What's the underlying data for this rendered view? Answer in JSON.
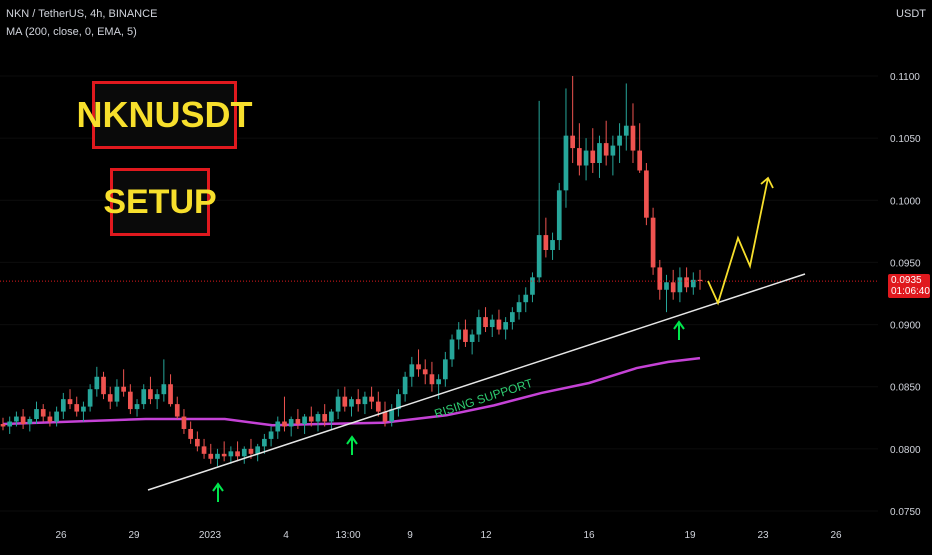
{
  "header": {
    "symbol_line": "NKN / TetherUS, 4h, BINANCE",
    "indicator_line": "MA (200, close, 0, EMA, 5)"
  },
  "annotations": {
    "title_box": "NKNUSDT",
    "setup_box": "SETUP",
    "support_label": "RISING SUPPORT"
  },
  "price_axis": {
    "currency": "USDT",
    "current_price": "0.0935",
    "countdown": "01:06:40"
  },
  "colors": {
    "up": "#26a69a",
    "down": "#ef5350",
    "ma": "#c542d6",
    "arrow": "#00e64d",
    "projection": "#f7df2c",
    "box_border": "#e0191e"
  },
  "chart_data": {
    "type": "candlestick",
    "timeframe": "4h",
    "ylim": [
      0.075,
      0.112
    ],
    "y_ticks": [
      "0.0750",
      "0.0800",
      "0.0850",
      "0.0900",
      "0.0950",
      "0.1000",
      "0.1050",
      "0.1100"
    ],
    "x_ticks": [
      "26",
      "29",
      "2023",
      "4",
      "13:00",
      "9",
      "12",
      "16",
      "19",
      "23",
      "26"
    ],
    "current_price": 0.0935,
    "candles_ohlc": [
      [
        0.082,
        0.0825,
        0.0815,
        0.0818
      ],
      [
        0.0818,
        0.0826,
        0.0812,
        0.0822
      ],
      [
        0.0822,
        0.083,
        0.0818,
        0.0826
      ],
      [
        0.0826,
        0.0832,
        0.0816,
        0.082
      ],
      [
        0.082,
        0.0826,
        0.0814,
        0.0824
      ],
      [
        0.0824,
        0.0838,
        0.082,
        0.0832
      ],
      [
        0.0832,
        0.0836,
        0.0822,
        0.0826
      ],
      [
        0.0826,
        0.083,
        0.0818,
        0.0822
      ],
      [
        0.0822,
        0.0834,
        0.0818,
        0.083
      ],
      [
        0.083,
        0.0845,
        0.0824,
        0.084
      ],
      [
        0.084,
        0.0848,
        0.0832,
        0.0836
      ],
      [
        0.0836,
        0.0842,
        0.0826,
        0.083
      ],
      [
        0.083,
        0.0838,
        0.0822,
        0.0834
      ],
      [
        0.0834,
        0.0852,
        0.083,
        0.0848
      ],
      [
        0.0848,
        0.0866,
        0.0842,
        0.0858
      ],
      [
        0.0858,
        0.0862,
        0.084,
        0.0844
      ],
      [
        0.0844,
        0.085,
        0.0832,
        0.0838
      ],
      [
        0.0838,
        0.0856,
        0.0834,
        0.085
      ],
      [
        0.085,
        0.0864,
        0.0842,
        0.0846
      ],
      [
        0.0846,
        0.0852,
        0.0828,
        0.0832
      ],
      [
        0.0832,
        0.084,
        0.0826,
        0.0836
      ],
      [
        0.0836,
        0.0852,
        0.0832,
        0.0848
      ],
      [
        0.0848,
        0.0858,
        0.0836,
        0.084
      ],
      [
        0.084,
        0.0848,
        0.0832,
        0.0844
      ],
      [
        0.0844,
        0.0872,
        0.0838,
        0.0852
      ],
      [
        0.0852,
        0.086,
        0.0834,
        0.0836
      ],
      [
        0.0836,
        0.0842,
        0.0824,
        0.0826
      ],
      [
        0.0826,
        0.0832,
        0.0812,
        0.0816
      ],
      [
        0.0816,
        0.0822,
        0.0804,
        0.0808
      ],
      [
        0.0808,
        0.0814,
        0.0798,
        0.0802
      ],
      [
        0.0802,
        0.0808,
        0.0792,
        0.0796
      ],
      [
        0.0796,
        0.0804,
        0.0788,
        0.0792
      ],
      [
        0.0792,
        0.08,
        0.0786,
        0.0796
      ],
      [
        0.0796,
        0.0806,
        0.079,
        0.0794
      ],
      [
        0.0794,
        0.0802,
        0.0788,
        0.0798
      ],
      [
        0.0798,
        0.0806,
        0.079,
        0.0794
      ],
      [
        0.0794,
        0.0802,
        0.0788,
        0.08
      ],
      [
        0.08,
        0.0808,
        0.0792,
        0.0796
      ],
      [
        0.0796,
        0.0804,
        0.079,
        0.0802
      ],
      [
        0.0802,
        0.0812,
        0.0796,
        0.0808
      ],
      [
        0.0808,
        0.0818,
        0.0802,
        0.0814
      ],
      [
        0.0814,
        0.0826,
        0.0808,
        0.0822
      ],
      [
        0.0822,
        0.0842,
        0.0814,
        0.0818
      ],
      [
        0.0818,
        0.0826,
        0.081,
        0.0824
      ],
      [
        0.0824,
        0.0832,
        0.0816,
        0.082
      ],
      [
        0.082,
        0.0828,
        0.0812,
        0.0826
      ],
      [
        0.0826,
        0.0834,
        0.0818,
        0.0822
      ],
      [
        0.0822,
        0.083,
        0.0814,
        0.0828
      ],
      [
        0.0828,
        0.0836,
        0.0818,
        0.0822
      ],
      [
        0.0822,
        0.0832,
        0.0816,
        0.083
      ],
      [
        0.083,
        0.0848,
        0.0824,
        0.0842
      ],
      [
        0.0842,
        0.085,
        0.083,
        0.0834
      ],
      [
        0.0834,
        0.0842,
        0.0826,
        0.084
      ],
      [
        0.084,
        0.0848,
        0.083,
        0.0836
      ],
      [
        0.0836,
        0.0846,
        0.0828,
        0.0842
      ],
      [
        0.0842,
        0.085,
        0.0832,
        0.0838
      ],
      [
        0.0838,
        0.0846,
        0.0826,
        0.083
      ],
      [
        0.083,
        0.0838,
        0.0818,
        0.0822
      ],
      [
        0.0822,
        0.0836,
        0.0818,
        0.0832
      ],
      [
        0.0832,
        0.0848,
        0.0826,
        0.0844
      ],
      [
        0.0844,
        0.0862,
        0.0838,
        0.0858
      ],
      [
        0.0858,
        0.0874,
        0.085,
        0.0868
      ],
      [
        0.0868,
        0.088,
        0.0858,
        0.0864
      ],
      [
        0.0864,
        0.0872,
        0.0852,
        0.086
      ],
      [
        0.086,
        0.087,
        0.0846,
        0.0852
      ],
      [
        0.0852,
        0.086,
        0.084,
        0.0856
      ],
      [
        0.0856,
        0.0878,
        0.085,
        0.0872
      ],
      [
        0.0872,
        0.0892,
        0.0866,
        0.0888
      ],
      [
        0.0888,
        0.0902,
        0.088,
        0.0896
      ],
      [
        0.0896,
        0.0904,
        0.0882,
        0.0886
      ],
      [
        0.0886,
        0.0896,
        0.0876,
        0.0892
      ],
      [
        0.0892,
        0.0912,
        0.0886,
        0.0906
      ],
      [
        0.0906,
        0.0914,
        0.0894,
        0.0898
      ],
      [
        0.0898,
        0.0908,
        0.089,
        0.0904
      ],
      [
        0.0904,
        0.0912,
        0.0892,
        0.0896
      ],
      [
        0.0896,
        0.0906,
        0.0888,
        0.0902
      ],
      [
        0.0902,
        0.0914,
        0.0896,
        0.091
      ],
      [
        0.091,
        0.0924,
        0.0904,
        0.0918
      ],
      [
        0.0918,
        0.093,
        0.091,
        0.0924
      ],
      [
        0.0924,
        0.0942,
        0.0918,
        0.0938
      ],
      [
        0.0938,
        0.108,
        0.0934,
        0.0972
      ],
      [
        0.0972,
        0.0986,
        0.0954,
        0.096
      ],
      [
        0.096,
        0.0974,
        0.0952,
        0.0968
      ],
      [
        0.0968,
        0.1014,
        0.096,
        0.1008
      ],
      [
        0.1008,
        0.109,
        0.0994,
        0.1052
      ],
      [
        0.1052,
        0.11,
        0.103,
        0.1042
      ],
      [
        0.1042,
        0.1062,
        0.102,
        0.1028
      ],
      [
        0.1028,
        0.105,
        0.1016,
        0.104
      ],
      [
        0.104,
        0.1058,
        0.1022,
        0.103
      ],
      [
        0.103,
        0.1052,
        0.1018,
        0.1046
      ],
      [
        0.1046,
        0.1064,
        0.1028,
        0.1036
      ],
      [
        0.1036,
        0.1052,
        0.102,
        0.1044
      ],
      [
        0.1044,
        0.1062,
        0.103,
        0.1052
      ],
      [
        0.1052,
        0.1094,
        0.104,
        0.106
      ],
      [
        0.106,
        0.1078,
        0.103,
        0.104
      ],
      [
        0.104,
        0.1062,
        0.1022,
        0.1024
      ],
      [
        0.1024,
        0.103,
        0.098,
        0.0986
      ],
      [
        0.0986,
        0.0994,
        0.094,
        0.0946
      ],
      [
        0.0946,
        0.0952,
        0.092,
        0.0928
      ],
      [
        0.0928,
        0.094,
        0.091,
        0.0934
      ],
      [
        0.0934,
        0.0944,
        0.092,
        0.0926
      ],
      [
        0.0926,
        0.0946,
        0.0918,
        0.0938
      ],
      [
        0.0938,
        0.0946,
        0.0926,
        0.093
      ],
      [
        0.093,
        0.0942,
        0.0924,
        0.0936
      ],
      [
        0.0936,
        0.0944,
        0.0928,
        0.0935
      ]
    ],
    "ma_200_ema": [
      [
        0,
        0.082
      ],
      [
        0.18,
        0.0824
      ],
      [
        0.28,
        0.0824
      ],
      [
        0.34,
        0.0819
      ],
      [
        0.4,
        0.082
      ],
      [
        0.48,
        0.0821
      ],
      [
        0.56,
        0.0827
      ],
      [
        0.62,
        0.0835
      ],
      [
        0.68,
        0.0845
      ],
      [
        0.74,
        0.0853
      ],
      [
        0.8,
        0.0865
      ],
      [
        0.84,
        0.087
      ],
      [
        0.88,
        0.0873
      ]
    ],
    "rising_support": {
      "from": [
        0.08,
        0.0788
      ],
      "to": [
        1.0,
        0.0937
      ]
    },
    "projection_path": [
      [
        0.0925,
        0.0915
      ],
      [
        0.0962,
        0.095
      ],
      [
        0.0968,
        0.0935
      ],
      [
        0.1006,
        0.0955
      ],
      [
        0.1005,
        0.101
      ]
    ],
    "support_touch_arrows": 3
  }
}
